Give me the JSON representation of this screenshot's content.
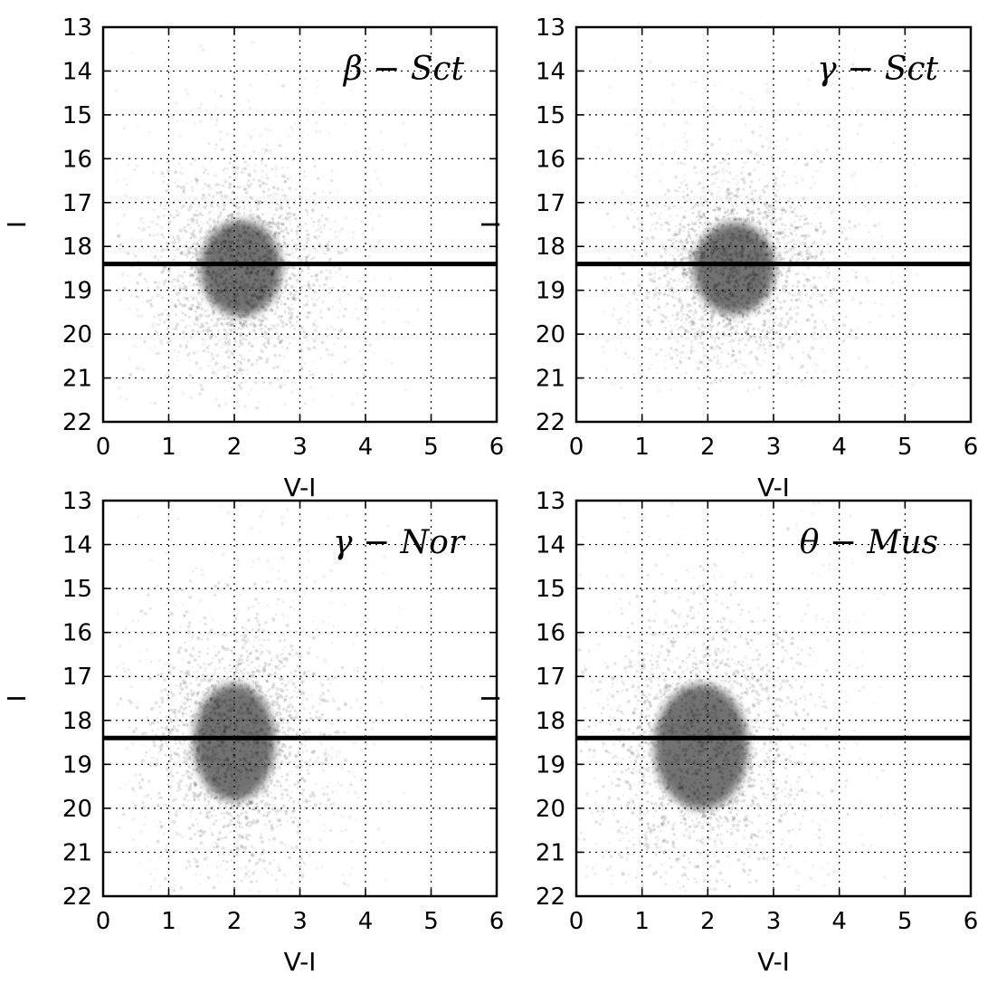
{
  "chart_data": [
    {
      "type": "scatter",
      "title": "β − Sct",
      "xlabel": "V-I",
      "ylabel": "I",
      "xlim": [
        0,
        6
      ],
      "ylim": [
        22,
        13
      ],
      "y_inverted": true,
      "x_ticks": [
        "0",
        "1",
        "2",
        "3",
        "4",
        "5",
        "6"
      ],
      "y_ticks": [
        "13",
        "14",
        "15",
        "16",
        "17",
        "18",
        "19",
        "20",
        "21",
        "22"
      ],
      "grid": true,
      "reference_line": {
        "orientation": "horizontal",
        "y": 18.4
      },
      "density": {
        "center": {
          "x": 2.1,
          "y": 18.5
        },
        "peak_range": {
          "x": [
            1.5,
            2.8
          ],
          "y": [
            17.5,
            19.8
          ]
        },
        "extent": {
          "x": [
            0.5,
            4.5
          ],
          "y": [
            13.0,
            21.4
          ]
        }
      }
    },
    {
      "type": "scatter",
      "title": "γ − Sct",
      "xlabel": "V-I",
      "ylabel": "I",
      "xlim": [
        0,
        6
      ],
      "ylim": [
        22,
        13
      ],
      "y_inverted": true,
      "x_ticks": [
        "0",
        "1",
        "2",
        "3",
        "4",
        "5",
        "6"
      ],
      "y_ticks": [
        "13",
        "14",
        "15",
        "16",
        "17",
        "18",
        "19",
        "20",
        "21",
        "22"
      ],
      "grid": true,
      "reference_line": {
        "orientation": "horizontal",
        "y": 18.4
      },
      "density": {
        "center": {
          "x": 2.4,
          "y": 18.5
        },
        "peak_range": {
          "x": [
            1.8,
            3.1
          ],
          "y": [
            17.6,
            19.8
          ]
        },
        "extent": {
          "x": [
            0.6,
            5.0
          ],
          "y": [
            13.0,
            21.0
          ]
        }
      }
    },
    {
      "type": "scatter",
      "title": "γ − Nor",
      "xlabel": "V-I",
      "ylabel": "I",
      "xlim": [
        0,
        6
      ],
      "ylim": [
        22,
        13
      ],
      "y_inverted": true,
      "x_ticks": [
        "0",
        "1",
        "2",
        "3",
        "4",
        "5",
        "6"
      ],
      "y_ticks": [
        "13",
        "14",
        "15",
        "16",
        "17",
        "18",
        "19",
        "20",
        "21",
        "22"
      ],
      "grid": true,
      "reference_line": {
        "orientation": "horizontal",
        "y": 18.4
      },
      "density": {
        "center": {
          "x": 2.0,
          "y": 18.5
        },
        "peak_range": {
          "x": [
            1.4,
            2.7
          ],
          "y": [
            17.2,
            20.0
          ]
        },
        "extent": {
          "x": [
            0.5,
            4.6
          ],
          "y": [
            13.0,
            21.6
          ]
        }
      }
    },
    {
      "type": "scatter",
      "title": "θ − Mus",
      "xlabel": "V-I",
      "ylabel": "I",
      "xlim": [
        0,
        6
      ],
      "ylim": [
        22,
        13
      ],
      "y_inverted": true,
      "x_ticks": [
        "0",
        "1",
        "2",
        "3",
        "4",
        "5",
        "6"
      ],
      "y_ticks": [
        "13",
        "14",
        "15",
        "16",
        "17",
        "18",
        "19",
        "20",
        "21",
        "22"
      ],
      "grid": true,
      "reference_line": {
        "orientation": "horizontal",
        "y": 18.4
      },
      "density": {
        "center": {
          "x": 1.9,
          "y": 18.6
        },
        "peak_range": {
          "x": [
            1.2,
            2.7
          ],
          "y": [
            17.2,
            20.2
          ]
        },
        "extent": {
          "x": [
            0.3,
            4.8
          ],
          "y": [
            13.0,
            21.6
          ]
        }
      }
    }
  ],
  "colors": {
    "background": "#ffffff",
    "axis": "#000000",
    "grid": "#000000",
    "point": "#000000",
    "reference_line": "#000000"
  }
}
